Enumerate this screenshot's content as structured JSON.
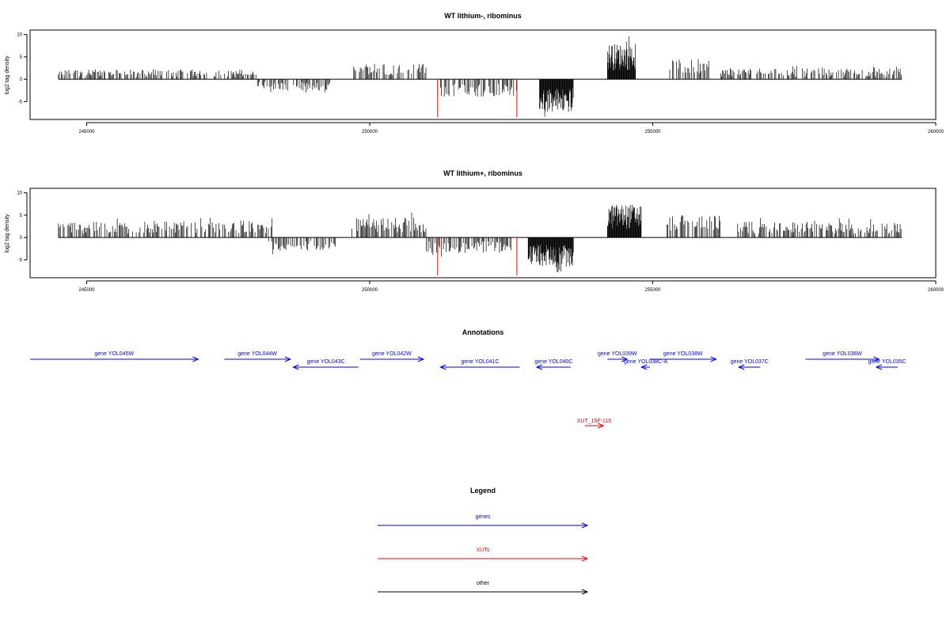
{
  "chart_data": [
    {
      "type": "bar",
      "title": "WT lithium-, ribominus",
      "xlabel": "",
      "ylabel": "log2 tag density",
      "xlim": [
        244000,
        260000
      ],
      "ylim": [
        -9,
        11
      ],
      "xticks": [
        245000,
        250000,
        255000,
        260000
      ],
      "yticks": [
        -5,
        0,
        5,
        10
      ],
      "data_range": [
        244500,
        259400
      ],
      "segments": [
        {
          "x": [
            244500,
            248000
          ],
          "value": 2.2,
          "sign": 1
        },
        {
          "x": [
            248000,
            249300
          ],
          "value": 2.5,
          "sign": -1
        },
        {
          "x": [
            249700,
            251000
          ],
          "value": 3.5,
          "sign": 1
        },
        {
          "x": [
            251200,
            252600
          ],
          "value": 4.0,
          "sign": -1
        },
        {
          "x": [
            253000,
            253600
          ],
          "value": 7.5,
          "sign": -1
        },
        {
          "x": [
            254200,
            254700
          ],
          "value": 8.0,
          "sign": 1
        },
        {
          "x": [
            255300,
            256000
          ],
          "value": 4.5,
          "sign": 1
        },
        {
          "x": [
            256200,
            259400
          ],
          "value": 2.5,
          "sign": 1
        }
      ],
      "marks": [
        251200,
        252600
      ],
      "mark_color": "#ff0000",
      "grid": false
    },
    {
      "type": "bar",
      "title": "WT lithium+, ribominus",
      "xlabel": "",
      "ylabel": "log2 tag density",
      "xlim": [
        244000,
        260000
      ],
      "ylim": [
        -9,
        11
      ],
      "xticks": [
        245000,
        250000,
        255000,
        260000
      ],
      "yticks": [
        -5,
        0,
        5,
        10
      ],
      "data_range": [
        244500,
        259400
      ],
      "segments": [
        {
          "x": [
            244500,
            248300
          ],
          "value": 3.5,
          "sign": 1
        },
        {
          "x": [
            248200,
            249400
          ],
          "value": 3.0,
          "sign": -1
        },
        {
          "x": [
            249600,
            251000
          ],
          "value": 4.5,
          "sign": 1
        },
        {
          "x": [
            251000,
            252500
          ],
          "value": 3.5,
          "sign": -1
        },
        {
          "x": [
            252800,
            253600
          ],
          "value": 6.5,
          "sign": -1
        },
        {
          "x": [
            254200,
            254800
          ],
          "value": 7.5,
          "sign": 1
        },
        {
          "x": [
            255200,
            256200
          ],
          "value": 5.0,
          "sign": 1
        },
        {
          "x": [
            256500,
            259400
          ],
          "value": 3.5,
          "sign": 1
        }
      ],
      "marks": [
        251200,
        252600
      ],
      "mark_color": "#ff0000",
      "grid": false
    }
  ],
  "annotations": {
    "title": "Annotations",
    "gene_color": "#0000ff",
    "xut_color": "#ff0000",
    "genes": [
      {
        "label": "gene YOL045W",
        "start": 244000,
        "end": 246970,
        "strand": "+",
        "row": 1
      },
      {
        "label": "gene YOL044W",
        "start": 247430,
        "end": 248600,
        "strand": "+",
        "row": 1
      },
      {
        "label": "gene YOL043C",
        "start": 248650,
        "end": 249800,
        "strand": "-",
        "row": 2
      },
      {
        "label": "gene YOL042W",
        "start": 249830,
        "end": 250950,
        "strand": "+",
        "row": 1
      },
      {
        "label": "gene YOL041C",
        "start": 251250,
        "end": 252650,
        "strand": "-",
        "row": 2
      },
      {
        "label": "gene YOL040C",
        "start": 252950,
        "end": 253550,
        "strand": "-",
        "row": 2
      },
      {
        "label": "gene YOL039W",
        "start": 254200,
        "end": 254550,
        "strand": "+",
        "row": 1
      },
      {
        "label": "gene YOL038C-A",
        "start": 254800,
        "end": 254950,
        "strand": "-",
        "row": 2
      },
      {
        "label": "gene YOL038W",
        "start": 254950,
        "end": 256120,
        "strand": "+",
        "row": 1
      },
      {
        "label": "gene YOL037C",
        "start": 256520,
        "end": 256900,
        "strand": "-",
        "row": 2
      },
      {
        "label": "gene YOL036W",
        "start": 257700,
        "end": 259000,
        "strand": "+",
        "row": 1
      },
      {
        "label": "gene YOL035C",
        "start": 258950,
        "end": 259330,
        "strand": "-",
        "row": 2
      }
    ],
    "xuts": [
      {
        "label": "XUT_15F-116",
        "start": 253800,
        "end": 254130,
        "strand": "+"
      }
    ]
  },
  "legend": {
    "title": "Legend",
    "items": [
      {
        "label": "genes",
        "color": "#0000ff"
      },
      {
        "label": "XUTs",
        "color": "#ff0000"
      },
      {
        "label": "other",
        "color": "#000000"
      }
    ]
  }
}
